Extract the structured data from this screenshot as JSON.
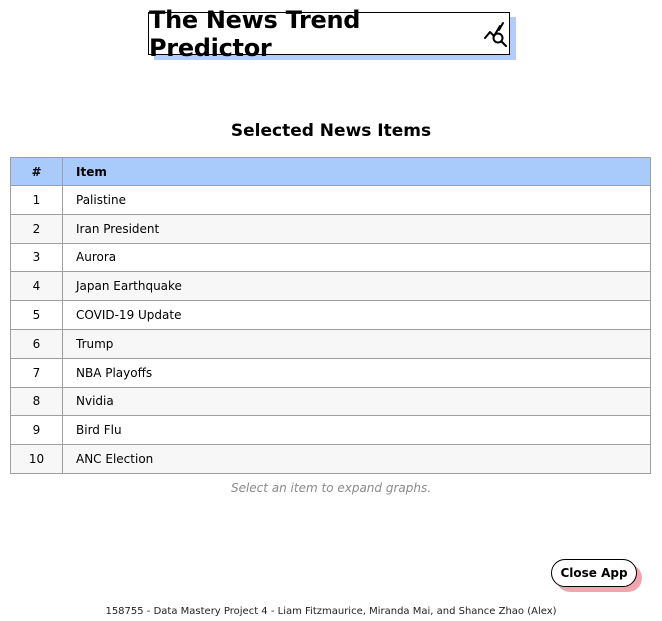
{
  "header": {
    "title": "The News Trend Predictor",
    "icon": "trend-search-icon"
  },
  "section": {
    "title": "Selected News Items"
  },
  "table": {
    "columns": [
      "#",
      "Item"
    ],
    "rows": [
      {
        "num": "1",
        "item": "Palistine"
      },
      {
        "num": "2",
        "item": "Iran President"
      },
      {
        "num": "3",
        "item": "Aurora"
      },
      {
        "num": "4",
        "item": "Japan Earthquake"
      },
      {
        "num": "5",
        "item": "COVID-19 Update"
      },
      {
        "num": "6",
        "item": "Trump"
      },
      {
        "num": "7",
        "item": "NBA Playoffs"
      },
      {
        "num": "8",
        "item": "Nvidia"
      },
      {
        "num": "9",
        "item": "Bird Flu"
      },
      {
        "num": "10",
        "item": "ANC Election"
      }
    ]
  },
  "hint": "Select an item to expand graphs.",
  "close_button": {
    "label": "Close App"
  },
  "footer": "158755 - Data Mastery Project 4 - Liam Fitzmaurice, Miranda Mai, and Shance Zhao (Alex)",
  "colors": {
    "header_shadow": "#b3cdfb",
    "table_header_bg": "#a9cbfb",
    "button_shadow": "#f3a5ad"
  }
}
